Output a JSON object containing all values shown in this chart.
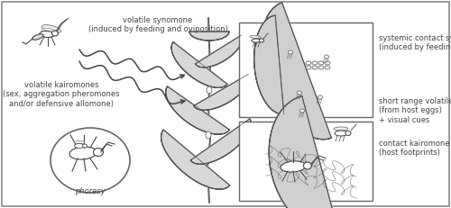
{
  "bg": "white",
  "border_color": "#888888",
  "gray": "#cccccc",
  "dark": "#444444",
  "mid": "#666666",
  "label_volatile_synomone": "volatile synomone\n(induced by feeding and oviposition)",
  "label_volatile_kairomones": "volatile kairomones\n(sex, aggregation pheromones\nand/or defensive allomone)",
  "label_phoresy": "phoresy",
  "label_systemic": "systemic contact synomone\n(induced by feeding and/or oviposition)",
  "label_short_range": "short range volatile kairomone\n(from host eggs)\n+ visual cues",
  "label_contact": "contact kairomone\n(host footprints)",
  "fs": 6.0
}
